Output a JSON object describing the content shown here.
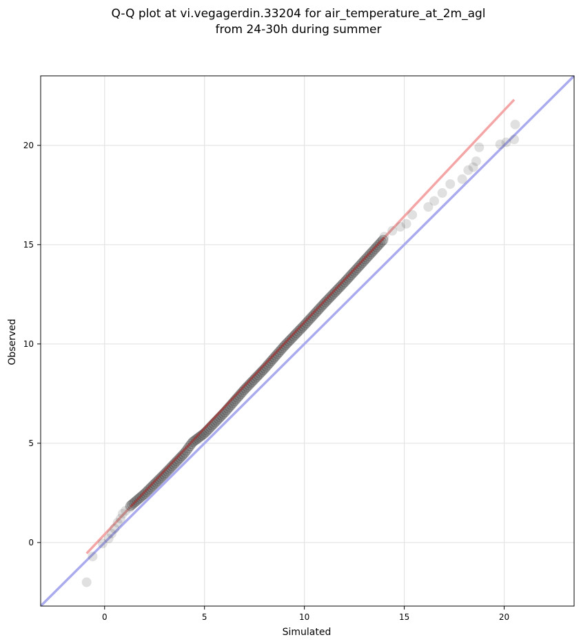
{
  "chart_data": {
    "type": "scatter",
    "title_lines": [
      "Q-Q plot at vi.vegagerdin.33204 for air_temperature_at_2m_agl",
      "from 24-30h during summer"
    ],
    "xlabel": "Simulated",
    "ylabel": "Observed",
    "xlim": [
      -3.2,
      23.5
    ],
    "ylim": [
      -3.2,
      23.5
    ],
    "x_ticks": [
      "0",
      "5",
      "10",
      "15",
      "20"
    ],
    "y_ticks": [
      "0",
      "5",
      "10",
      "15",
      "20"
    ],
    "grid": true,
    "colors": {
      "points": "#555555",
      "identity_line": "#aaaaee",
      "fit_line": "#f4a6a6",
      "fit_line_dense": "#b03030"
    },
    "identity_line": {
      "x": [
        -3.2,
        23.5
      ],
      "y": [
        -3.2,
        23.5
      ]
    },
    "fit_line": {
      "x": [
        -0.9,
        20.5
      ],
      "y": [
        -0.55,
        22.3
      ]
    },
    "outlier_points": [
      {
        "x": -0.9,
        "y": -2.0
      },
      {
        "x": -0.6,
        "y": -0.7
      },
      {
        "x": -0.1,
        "y": -0.05
      },
      {
        "x": 0.2,
        "y": 0.2
      },
      {
        "x": 0.35,
        "y": 0.45
      },
      {
        "x": 0.5,
        "y": 0.7
      },
      {
        "x": 0.65,
        "y": 1.0
      },
      {
        "x": 0.8,
        "y": 1.2
      },
      {
        "x": 0.9,
        "y": 1.45
      },
      {
        "x": 1.05,
        "y": 1.6
      },
      {
        "x": 1.25,
        "y": 1.75
      },
      {
        "x": 14.0,
        "y": 15.4
      },
      {
        "x": 14.4,
        "y": 15.7
      },
      {
        "x": 14.8,
        "y": 15.9
      },
      {
        "x": 15.1,
        "y": 16.05
      },
      {
        "x": 15.4,
        "y": 16.5
      },
      {
        "x": 16.2,
        "y": 16.9
      },
      {
        "x": 16.5,
        "y": 17.2
      },
      {
        "x": 16.9,
        "y": 17.6
      },
      {
        "x": 17.3,
        "y": 18.05
      },
      {
        "x": 17.9,
        "y": 18.3
      },
      {
        "x": 18.2,
        "y": 18.75
      },
      {
        "x": 18.45,
        "y": 18.9
      },
      {
        "x": 18.6,
        "y": 19.2
      },
      {
        "x": 18.75,
        "y": 19.9
      },
      {
        "x": 19.8,
        "y": 20.05
      },
      {
        "x": 20.1,
        "y": 20.15
      },
      {
        "x": 20.5,
        "y": 20.3
      },
      {
        "x": 20.55,
        "y": 21.05
      }
    ],
    "dense_band": {
      "x_start": 1.3,
      "x_end": 14.0,
      "step": 0.08,
      "y_breakpoints": [
        {
          "x": 1.3,
          "y": 1.85
        },
        {
          "x": 2.0,
          "y": 2.45
        },
        {
          "x": 3.0,
          "y": 3.45
        },
        {
          "x": 4.0,
          "y": 4.5
        },
        {
          "x": 4.4,
          "y": 5.05
        },
        {
          "x": 5.0,
          "y": 5.5
        },
        {
          "x": 6.0,
          "y": 6.55
        },
        {
          "x": 7.0,
          "y": 7.7
        },
        {
          "x": 8.0,
          "y": 8.75
        },
        {
          "x": 9.0,
          "y": 9.9
        },
        {
          "x": 10.0,
          "y": 10.95
        },
        {
          "x": 11.0,
          "y": 12.05
        },
        {
          "x": 12.0,
          "y": 13.1
        },
        {
          "x": 13.0,
          "y": 14.2
        },
        {
          "x": 14.0,
          "y": 15.3
        }
      ]
    }
  }
}
